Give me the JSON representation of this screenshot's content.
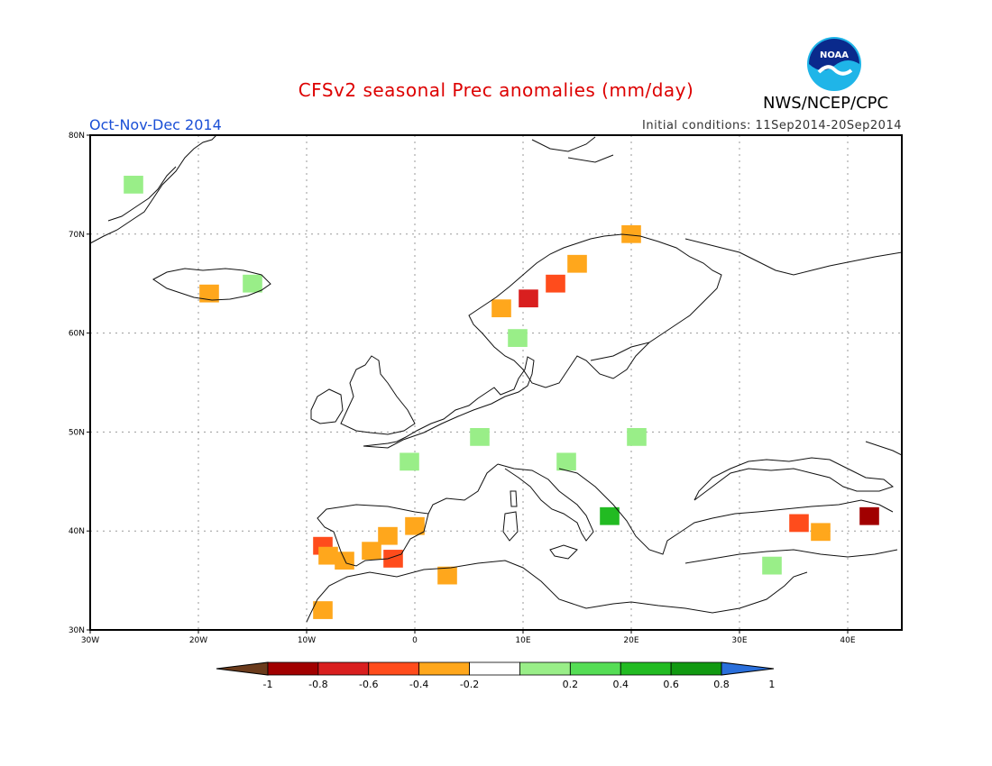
{
  "title": "CFSv2 seasonal Prec anomalies (mm/day)",
  "season": "Oct-Nov-Dec 2014",
  "initial_conditions": "Initial conditions: 11Sep2014-20Sep2014",
  "agency": "NWS/NCEP/CPC",
  "logo_text": "NOAA",
  "lat_ticks": [
    "30N",
    "40N",
    "50N",
    "60N",
    "70N",
    "80N"
  ],
  "lon_ticks": [
    "30W",
    "20W",
    "10W",
    "0",
    "10E",
    "20E",
    "30E",
    "40E"
  ],
  "colorbar": {
    "labels": [
      "-1",
      "-0.8",
      "-0.6",
      "-0.4",
      "-0.2",
      "0.2",
      "0.4",
      "0.6",
      "0.8",
      "1"
    ],
    "colors": [
      "#6b3b1c",
      "#a10000",
      "#d91f1f",
      "#ff4c1c",
      "#ffa71c",
      "#ffffff",
      "#99ee88",
      "#55dd55",
      "#22bb22",
      "#119911",
      "#2a6fdb"
    ]
  },
  "chart_data": {
    "type": "heatmap",
    "lon_range": [
      -30,
      45
    ],
    "lat_range": [
      30,
      80
    ],
    "cells": [
      {
        "lon": -8.5,
        "lat": 38.5,
        "value": -0.5
      },
      {
        "lon": -8.0,
        "lat": 37.5,
        "value": -0.3
      },
      {
        "lon": -6.5,
        "lat": 37.0,
        "value": -0.3
      },
      {
        "lon": -4.0,
        "lat": 38.0,
        "value": -0.3
      },
      {
        "lon": -2.5,
        "lat": 39.5,
        "value": -0.3
      },
      {
        "lon": -2.0,
        "lat": 37.2,
        "value": -0.5
      },
      {
        "lon": 0.0,
        "lat": 40.5,
        "value": -0.3
      },
      {
        "lon": 3.0,
        "lat": 35.5,
        "value": -0.3
      },
      {
        "lon": -8.5,
        "lat": 32.0,
        "value": -0.3
      },
      {
        "lon": 10.5,
        "lat": 63.5,
        "value": -0.7
      },
      {
        "lon": 13.0,
        "lat": 65.0,
        "value": -0.5
      },
      {
        "lon": 8.0,
        "lat": 62.5,
        "value": -0.3
      },
      {
        "lon": 15.0,
        "lat": 67.0,
        "value": -0.3
      },
      {
        "lon": 20.0,
        "lat": 70.0,
        "value": -0.3
      },
      {
        "lon": -19.0,
        "lat": 64.0,
        "value": -0.3
      },
      {
        "lon": 42.0,
        "lat": 41.5,
        "value": -0.9
      },
      {
        "lon": 35.5,
        "lat": 40.8,
        "value": -0.5
      },
      {
        "lon": 37.5,
        "lat": 39.9,
        "value": -0.3
      },
      {
        "lon": -26.0,
        "lat": 75.0,
        "value": 0.3
      },
      {
        "lon": -15.0,
        "lat": 65.0,
        "value": 0.3
      },
      {
        "lon": 6.0,
        "lat": 49.5,
        "value": 0.3
      },
      {
        "lon": -0.5,
        "lat": 47.0,
        "value": 0.3
      },
      {
        "lon": 14.0,
        "lat": 47.0,
        "value": 0.3
      },
      {
        "lon": 20.5,
        "lat": 49.5,
        "value": 0.3
      },
      {
        "lon": 18.0,
        "lat": 41.5,
        "value": 0.7
      },
      {
        "lon": 33.0,
        "lat": 36.5,
        "value": 0.3
      },
      {
        "lon": 9.5,
        "lat": 59.5,
        "value": 0.3
      }
    ]
  }
}
